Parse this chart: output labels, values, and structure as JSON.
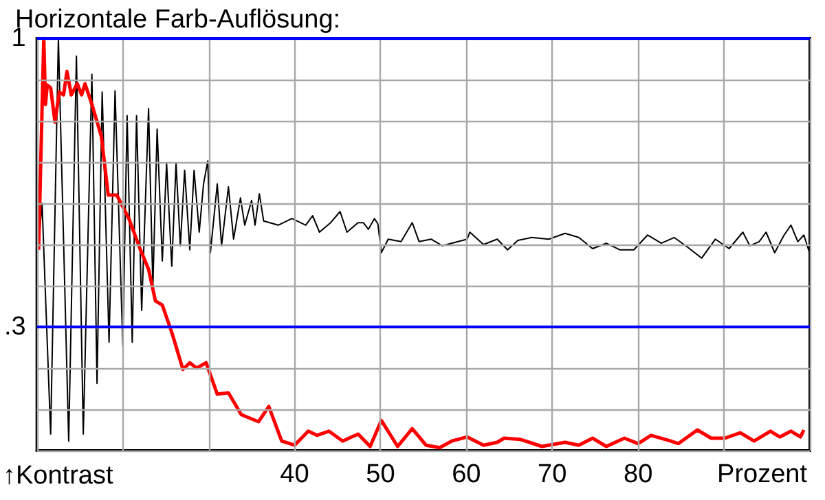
{
  "chart_data": {
    "type": "line",
    "title": "Horizontale Farb-Auflösung:",
    "xlabel": "Prozent",
    "ylabel": "↑Kontrast",
    "xlim": [
      10,
      100
    ],
    "xticks": [
      {
        "value": 10,
        "label": null
      },
      {
        "value": 20,
        "label": null
      },
      {
        "value": 30,
        "label": null
      },
      40,
      50,
      60,
      70,
      80,
      {
        "value": 90,
        "label": null
      },
      {
        "value": 100,
        "label": null
      }
    ],
    "ylim": [
      0,
      1
    ],
    "yticks": [
      {
        "value": 0,
        "label": null
      },
      {
        "value": 0.1,
        "label": null
      },
      {
        "value": 0.2,
        "label": null
      },
      {
        "value": 0.3,
        "label": ".3"
      },
      {
        "value": 0.4,
        "label": null
      },
      {
        "value": 0.5,
        "label": null
      },
      {
        "value": 0.6,
        "label": null
      },
      {
        "value": 0.7,
        "label": null
      },
      {
        "value": 0.8,
        "label": null
      },
      {
        "value": 0.9,
        "label": null
      },
      {
        "value": 1,
        "label": "1"
      }
    ],
    "grid": true,
    "marker": "none",
    "ref_lines": [
      {
        "axis": "y",
        "value": 1,
        "color": "#0000ff"
      },
      {
        "axis": "y",
        "value": 0.3,
        "color": "#0000ff"
      }
    ],
    "series": [
      {
        "color": "#000000",
        "x": [
          10.2,
          10.6,
          11.6,
          12.5,
          13.7,
          14.6,
          15.4,
          16.4,
          17.0,
          17.6,
          18.4,
          19.1,
          20.0,
          20.5,
          21.1,
          21.6,
          22.2,
          23.0,
          23.5,
          24.0,
          24.6,
          25.1,
          25.7,
          26.2,
          26.7,
          27.2,
          27.8,
          28.3,
          28.9,
          29.4,
          29.9,
          30.2,
          31.0,
          31.5,
          32.3,
          32.9,
          33.7,
          34.2,
          35.0,
          35.4,
          35.9,
          36.4,
          38.1,
          39.7,
          41.3,
          42.1,
          42.9,
          44.2,
          45.3,
          46.1,
          47.4,
          48.0,
          48.6,
          49.3,
          49.7,
          50.1,
          50.9,
          52.4,
          53.7,
          54.5,
          55.9,
          57.2,
          60.1,
          60.4,
          62.0,
          63.6,
          64.8,
          66.0,
          67.6,
          69.6,
          71.5,
          73.1,
          74.7,
          76.3,
          77.9,
          79.5,
          81.1,
          82.7,
          84.2,
          85.8,
          87.4,
          89.0,
          90.6,
          92.2,
          93.0,
          94.1,
          94.9,
          95.9,
          97.0,
          97.8,
          98.6,
          99.3,
          100
        ],
        "values": [
          0.5,
          0.6,
          0.04,
          1.0,
          0.023,
          0.957,
          0.04,
          0.913,
          0.163,
          0.87,
          0.263,
          0.873,
          0.253,
          0.813,
          0.263,
          0.813,
          0.34,
          0.83,
          0.397,
          0.78,
          0.46,
          0.697,
          0.447,
          0.697,
          0.497,
          0.68,
          0.487,
          0.68,
          0.53,
          0.647,
          0.703,
          0.48,
          0.647,
          0.497,
          0.64,
          0.513,
          0.613,
          0.547,
          0.607,
          0.547,
          0.623,
          0.557,
          0.547,
          0.563,
          0.547,
          0.57,
          0.53,
          0.553,
          0.58,
          0.53,
          0.553,
          0.553,
          0.537,
          0.563,
          0.55,
          0.48,
          0.513,
          0.507,
          0.553,
          0.507,
          0.513,
          0.497,
          0.513,
          0.53,
          0.5,
          0.513,
          0.487,
          0.51,
          0.517,
          0.513,
          0.527,
          0.517,
          0.49,
          0.503,
          0.487,
          0.487,
          0.523,
          0.503,
          0.517,
          0.493,
          0.467,
          0.513,
          0.49,
          0.53,
          0.497,
          0.507,
          0.53,
          0.48,
          0.523,
          0.547,
          0.507,
          0.523,
          0.477
        ]
      },
      {
        "color": "#ff0000",
        "x": [
          10.2,
          10.8,
          11.0,
          11.2,
          11.6,
          12.1,
          12.6,
          13.1,
          13.5,
          14.0,
          14.7,
          15.2,
          15.6,
          16.4,
          17.5,
          18.3,
          19.3,
          20.7,
          22.0,
          23.0,
          23.8,
          24.6,
          25.7,
          27.0,
          27.8,
          28.6,
          29.7,
          31.0,
          32.3,
          33.8,
          35.8,
          37.0,
          38.5,
          40.0,
          41.6,
          42.6,
          44.0,
          45.6,
          47.4,
          48.8,
          50.1,
          52.0,
          53.7,
          55.3,
          56.9,
          58.3,
          60.1,
          62.0,
          63.6,
          64.4,
          66.3,
          68.8,
          71.5,
          73.1,
          74.7,
          76.3,
          78.4,
          80.0,
          81.5,
          83.8,
          84.7,
          86.9,
          88.5,
          90.1,
          91.9,
          93.5,
          95.4,
          96.5,
          97.8,
          98.9,
          99.3
        ],
        "values": [
          0.487,
          1.0,
          0.84,
          0.887,
          0.88,
          0.797,
          0.87,
          0.863,
          0.92,
          0.863,
          0.89,
          0.863,
          0.89,
          0.84,
          0.763,
          0.62,
          0.62,
          0.563,
          0.49,
          0.44,
          0.363,
          0.353,
          0.287,
          0.197,
          0.213,
          0.2,
          0.213,
          0.137,
          0.14,
          0.087,
          0.07,
          0.107,
          0.023,
          0.013,
          0.047,
          0.037,
          0.047,
          0.023,
          0.04,
          0.01,
          0.073,
          0.01,
          0.053,
          0.013,
          0.007,
          0.023,
          0.033,
          0.013,
          0.02,
          0.03,
          0.027,
          0.01,
          0.02,
          0.013,
          0.03,
          0.01,
          0.03,
          0.017,
          0.037,
          0.023,
          0.017,
          0.05,
          0.03,
          0.03,
          0.043,
          0.023,
          0.047,
          0.033,
          0.047,
          0.033,
          0.05
        ]
      }
    ]
  }
}
